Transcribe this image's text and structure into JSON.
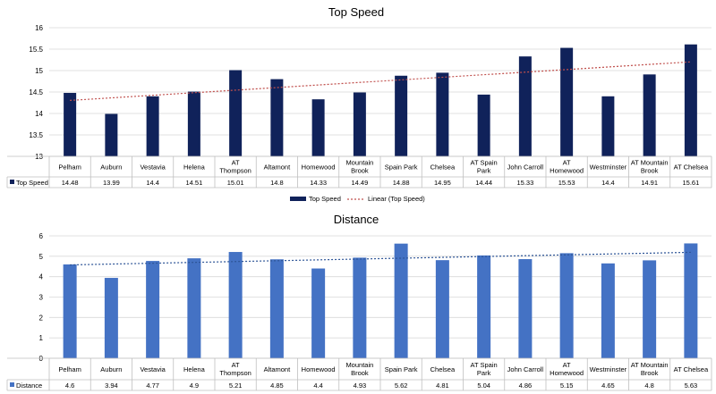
{
  "chart_data": [
    {
      "type": "bar",
      "title": "Top Speed",
      "categories": [
        [
          "Pelham"
        ],
        [
          "Auburn"
        ],
        [
          "Vestavia"
        ],
        [
          "Helena"
        ],
        [
          "AT",
          "Thompson"
        ],
        [
          "Altamont"
        ],
        [
          "Homewood"
        ],
        [
          "Mountain",
          "Brook"
        ],
        [
          "Spain Park"
        ],
        [
          "Chelsea"
        ],
        [
          "AT Spain",
          "Park"
        ],
        [
          "John Carroll"
        ],
        [
          "AT",
          "Homewood"
        ],
        [
          "Westminster"
        ],
        [
          "AT Mountain",
          "Brook"
        ],
        [
          "AT Chelsea"
        ]
      ],
      "series": [
        {
          "name": "Top Speed",
          "values": [
            14.48,
            13.99,
            14.4,
            14.51,
            15.01,
            14.8,
            14.33,
            14.49,
            14.88,
            14.95,
            14.44,
            15.33,
            15.53,
            14.4,
            14.91,
            15.61
          ]
        }
      ],
      "trendline": {
        "name": "Linear (Top Speed)",
        "type": "linear"
      },
      "ylim": [
        13,
        16
      ],
      "yticks": [
        "13",
        "13.5",
        "14",
        "14.5",
        "15",
        "15.5",
        "16"
      ],
      "colors": {
        "bar": "#10225a",
        "trend": "#c0504d"
      },
      "legend": "bottom",
      "data_table": true
    },
    {
      "type": "bar",
      "title": "Distance",
      "categories": [
        [
          "Pelham"
        ],
        [
          "Auburn"
        ],
        [
          "Vestavia"
        ],
        [
          "Helena"
        ],
        [
          "AT",
          "Thompson"
        ],
        [
          "Altamont"
        ],
        [
          "Homewood"
        ],
        [
          "Mountain",
          "Brook"
        ],
        [
          "Spain Park"
        ],
        [
          "Chelsea"
        ],
        [
          "AT Spain",
          "Park"
        ],
        [
          "John Carroll"
        ],
        [
          "AT",
          "Homewood"
        ],
        [
          "Westminster"
        ],
        [
          "AT Mountain",
          "Brook"
        ],
        [
          "AT Chelsea"
        ]
      ],
      "series": [
        {
          "name": "Distance",
          "values": [
            4.6,
            3.94,
            4.77,
            4.9,
            5.21,
            4.85,
            4.4,
            4.93,
            5.62,
            4.81,
            5.04,
            4.86,
            5.15,
            4.65,
            4.8,
            5.63
          ]
        }
      ],
      "trendline": {
        "type": "linear"
      },
      "ylim": [
        0,
        6
      ],
      "yticks": [
        "0",
        "1",
        "2",
        "3",
        "4",
        "5",
        "6"
      ],
      "colors": {
        "bar": "#4472c4",
        "trend": "#2e5597"
      },
      "data_table": true
    }
  ]
}
